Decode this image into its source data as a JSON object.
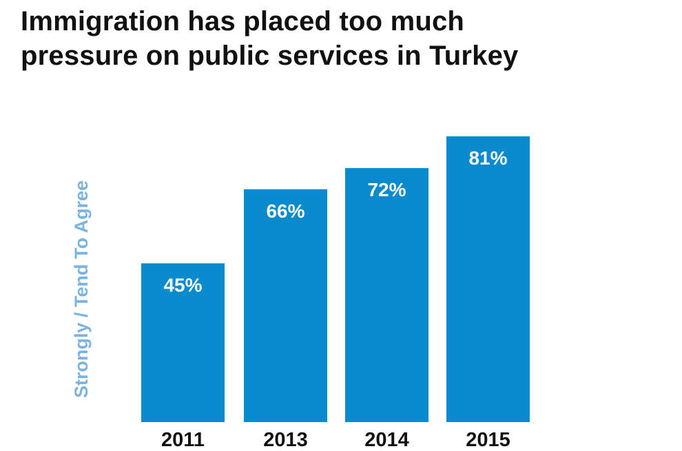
{
  "title_lines": [
    "Immigration has placed too much",
    "pressure on public services in Turkey"
  ],
  "colors": {
    "bar": "#0a8bcd",
    "axis_label": "#7cb4e0",
    "title": "#111111"
  },
  "chart_data": {
    "type": "bar",
    "title": "Immigration has placed too much pressure on public services in Turkey",
    "categories": [
      "2011",
      "2013",
      "2014",
      "2015"
    ],
    "values": [
      45,
      66,
      72,
      81
    ],
    "value_labels": [
      "45%",
      "66%",
      "72%",
      "81%"
    ],
    "xlabel": "",
    "ylabel": "Strongly / Tend To Agree",
    "ylim": [
      0,
      81
    ],
    "grid": false,
    "legend": "none"
  }
}
